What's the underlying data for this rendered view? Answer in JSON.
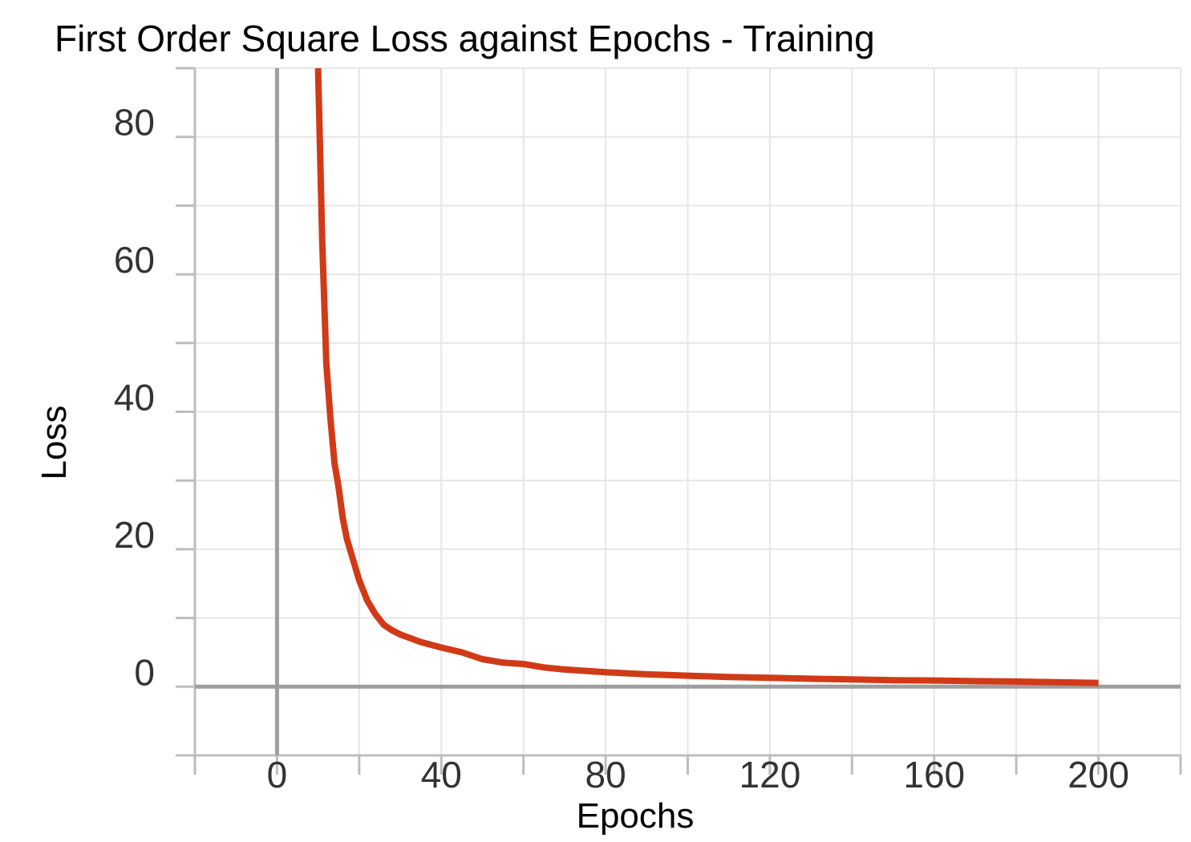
{
  "chart_data": {
    "type": "line",
    "title": "First Order Square Loss against Epochs - Training",
    "xlabel": "Epochs",
    "ylabel": "Loss",
    "xlim": [
      -20,
      220
    ],
    "ylim": [
      -10,
      90
    ],
    "xticks": [
      0,
      40,
      80,
      120,
      160,
      200
    ],
    "yticks": [
      0,
      20,
      40,
      60,
      80
    ],
    "xminor": [
      -20,
      20,
      60,
      100,
      140,
      180,
      220
    ],
    "yminor": [
      -10,
      10,
      30,
      50,
      70,
      90
    ],
    "grid": true,
    "legend": "none",
    "series": [
      {
        "color": "#d13a17",
        "x": [
          10,
          11,
          12,
          13,
          14,
          15,
          16,
          17,
          18,
          20,
          22,
          24,
          26,
          28,
          30,
          35,
          40,
          45,
          50,
          55,
          60,
          65,
          70,
          80,
          90,
          100,
          110,
          120,
          130,
          140,
          150,
          160,
          170,
          180,
          190,
          200
        ],
        "y": [
          90,
          65,
          47,
          39,
          32.5,
          29,
          24.5,
          21.5,
          19.5,
          15.5,
          12.5,
          10.5,
          9,
          8.2,
          7.6,
          6.5,
          5.7,
          5,
          4,
          3.5,
          3.3,
          2.8,
          2.5,
          2.1,
          1.8,
          1.6,
          1.4,
          1.3,
          1.15,
          1.05,
          0.95,
          0.9,
          0.8,
          0.75,
          0.65,
          0.55
        ]
      }
    ]
  }
}
